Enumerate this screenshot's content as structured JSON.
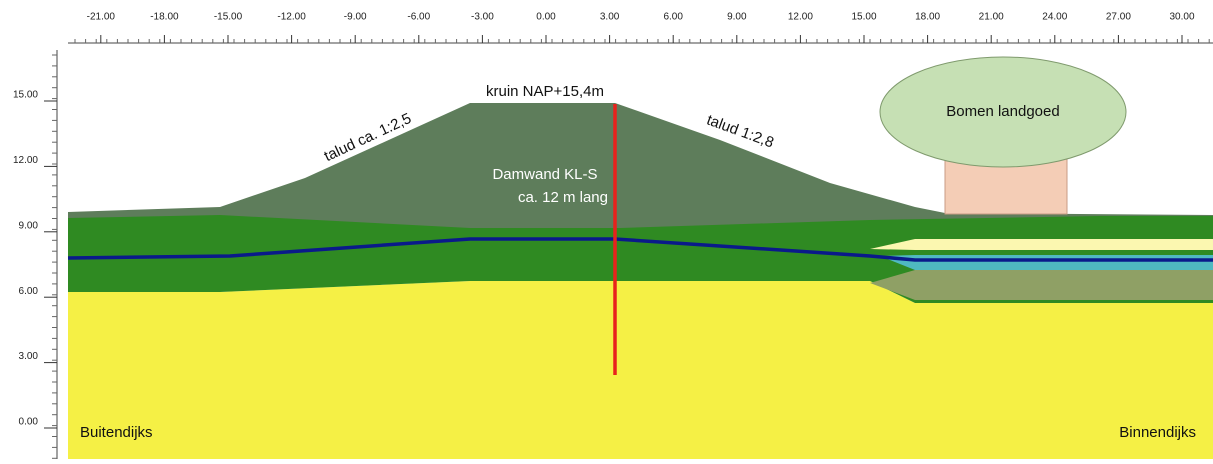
{
  "x_axis": {
    "ticks": [
      {
        "value": -21,
        "label": "-21.00"
      },
      {
        "value": -18,
        "label": "-18.00"
      },
      {
        "value": -15,
        "label": "-15.00"
      },
      {
        "value": -12,
        "label": "-12.00"
      },
      {
        "value": -9,
        "label": "-9.00"
      },
      {
        "value": -6,
        "label": "-6.00"
      },
      {
        "value": -3,
        "label": "-3.00"
      },
      {
        "value": 0,
        "label": "0.00"
      },
      {
        "value": 3,
        "label": "3.00"
      },
      {
        "value": 6,
        "label": "6.00"
      },
      {
        "value": 9,
        "label": "9.00"
      },
      {
        "value": 12,
        "label": "12.00"
      },
      {
        "value": 15,
        "label": "15.00"
      },
      {
        "value": 18,
        "label": "18.00"
      },
      {
        "value": 21,
        "label": "21.00"
      },
      {
        "value": 24,
        "label": "24.00"
      },
      {
        "value": 27,
        "label": "27.00"
      },
      {
        "value": 30,
        "label": "30.00"
      }
    ]
  },
  "y_axis": {
    "ticks": [
      {
        "value": 15,
        "label": "15.00"
      },
      {
        "value": 12,
        "label": "12.00"
      },
      {
        "value": 9,
        "label": "9.00"
      },
      {
        "value": 6,
        "label": "6.00"
      },
      {
        "value": 3,
        "label": "3.00"
      },
      {
        "value": 0,
        "label": "0.00"
      }
    ]
  },
  "annotations": {
    "crest": "kruin NAP+15,4m",
    "slope_left": "talud ca. 1:2,5",
    "slope_right": "talud 1:2,8",
    "sheet_pile_1": "Damwand KL-S",
    "sheet_pile_2": "ca. 12 m lang",
    "trees": "Bomen landgoed",
    "outside": "Buitendijks",
    "inside": "Binnendijks"
  }
}
